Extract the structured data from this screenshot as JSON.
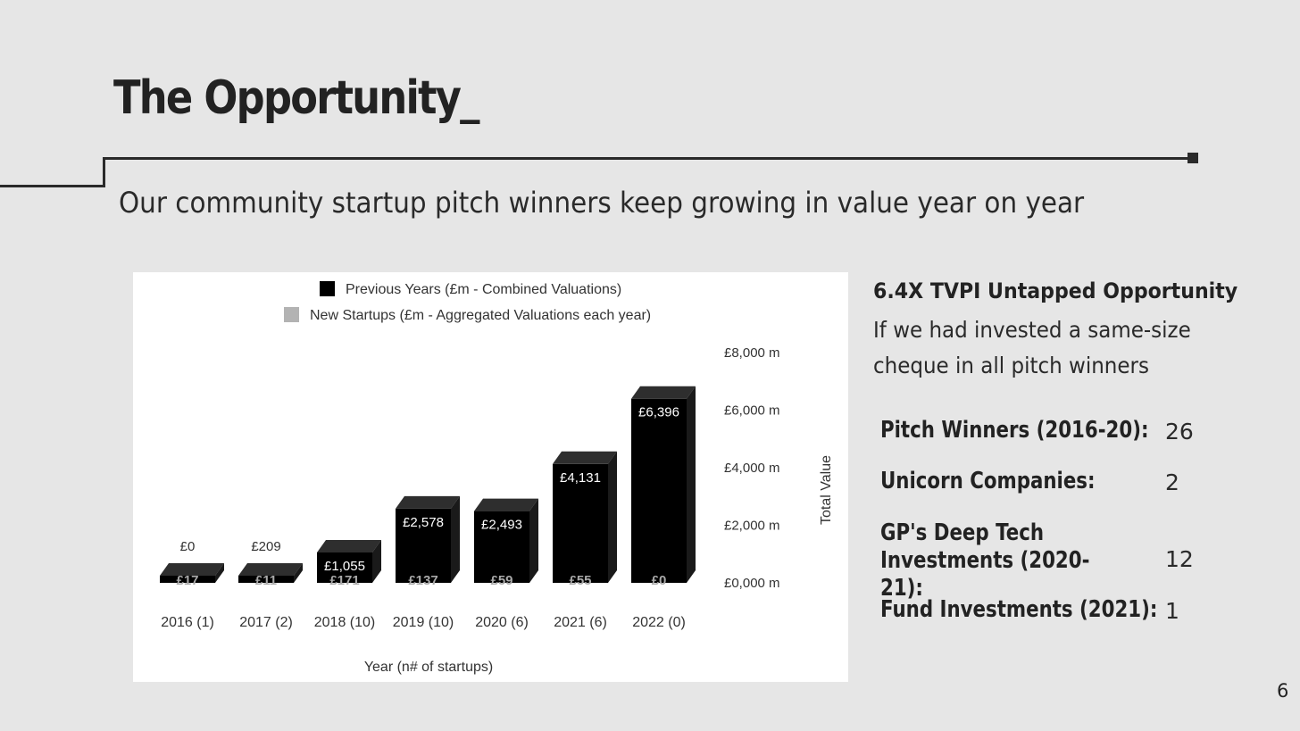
{
  "slide": {
    "title": "The Opportunity_",
    "subtitle": "Our community startup pitch winners keep growing in value year on year",
    "page_number": "6"
  },
  "side": {
    "heading": "6.4X TVPI Untapped Opportunity",
    "text": "If we had invested a same-size cheque in all pitch winners",
    "stats": [
      {
        "label": "Pitch Winners (2016-20):",
        "value": "26"
      },
      {
        "label": "Unicorn Companies:",
        "value": "2"
      },
      {
        "label": "GP's Deep Tech Investments (2020-21):",
        "value": "12"
      },
      {
        "label": "Fund Investments (2021):",
        "value": "1"
      }
    ]
  },
  "colors": {
    "background": "#e6e6e6",
    "previous_years": "#000000",
    "new_startups": "#b3b3b3"
  },
  "chart_data": {
    "type": "bar",
    "stacked": true,
    "style": "3d",
    "categories": [
      "2016 (1)",
      "2017 (2)",
      "2018 (10)",
      "2019 (10)",
      "2020 (6)",
      "2021 (6)",
      "2022 (0)"
    ],
    "series": [
      {
        "name": "Previous Years (£m - Combined Valuations)",
        "values": [
          0,
          209,
          1055,
          2578,
          2493,
          4131,
          6396
        ],
        "labels": [
          "£0",
          "£209",
          "£1,055",
          "£2,578",
          "£2,493",
          "£4,131",
          "£6,396"
        ]
      },
      {
        "name": "New Startups (£m - Aggregated Valuations each year)",
        "values": [
          17,
          11,
          171,
          137,
          59,
          55,
          0
        ],
        "labels": [
          "£17",
          "£11",
          "£171",
          "£137",
          "£59",
          "£55",
          "£0"
        ]
      }
    ],
    "xlabel": "Year (n# of startups)",
    "ylabel": "Total Value",
    "y_ticks": [
      "£0,000 m",
      "£2,000 m",
      "£4,000 m",
      "£6,000 m",
      "£8,000 m"
    ],
    "ylim": [
      0,
      8000
    ],
    "y_axis_side": "right",
    "legend": "top",
    "grid": false
  }
}
